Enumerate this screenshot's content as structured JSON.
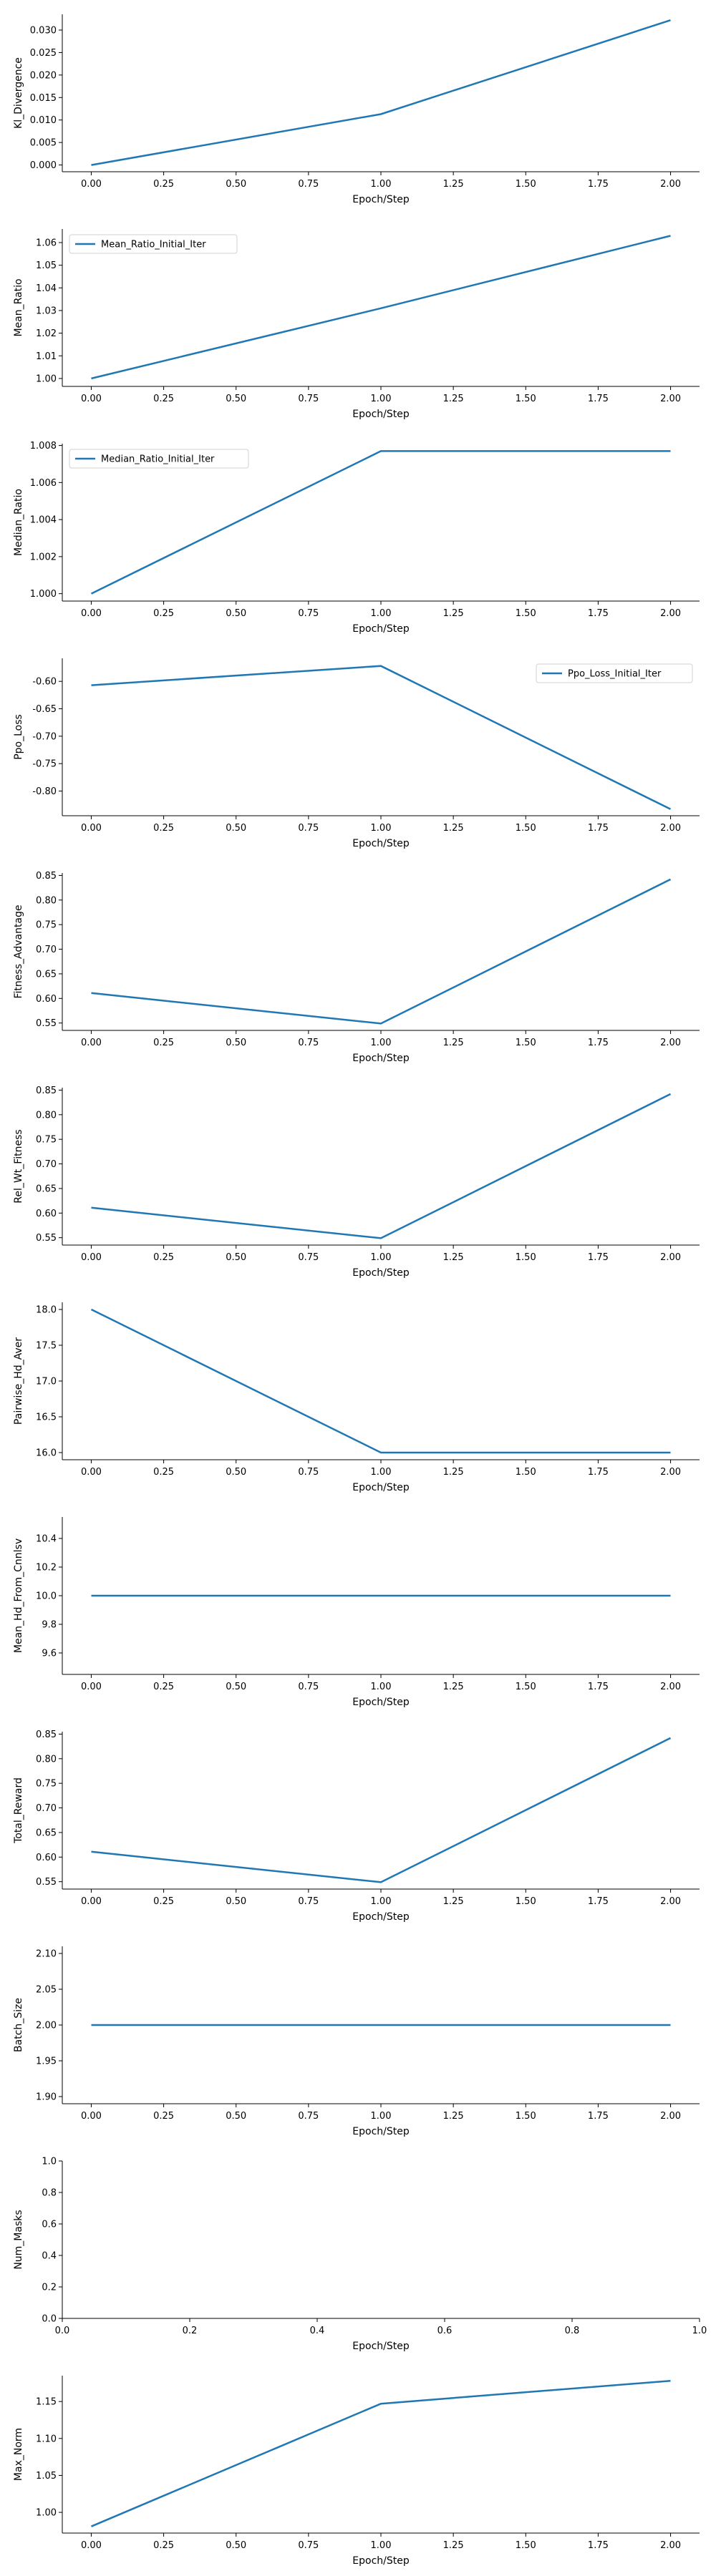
{
  "colors": {
    "series": "#1f77b4",
    "axis": "#000000",
    "background": "#ffffff"
  },
  "chart_data": [
    {
      "type": "line",
      "xlabel": "Epoch/Step",
      "ylabel": "Kl_Divergence",
      "xlim": [
        -0.1,
        2.1
      ],
      "ylim": [
        -0.0015,
        0.0335
      ],
      "xticks": [
        "0.00",
        "0.25",
        "0.50",
        "0.75",
        "1.00",
        "1.25",
        "1.50",
        "1.75",
        "2.00"
      ],
      "yticks": [
        "0.000",
        "0.005",
        "0.010",
        "0.015",
        "0.020",
        "0.025",
        "0.030"
      ],
      "legend": null,
      "series": [
        {
          "x": [
            0,
            1,
            2
          ],
          "y": [
            0.0,
            0.0113,
            0.0322
          ]
        }
      ]
    },
    {
      "type": "line",
      "xlabel": "Epoch/Step",
      "ylabel": "Mean_Ratio",
      "xlim": [
        -0.1,
        2.1
      ],
      "ylim": [
        0.9965,
        1.066
      ],
      "xticks": [
        "0.00",
        "0.25",
        "0.50",
        "0.75",
        "1.00",
        "1.25",
        "1.50",
        "1.75",
        "2.00"
      ],
      "yticks": [
        "1.00",
        "1.01",
        "1.02",
        "1.03",
        "1.04",
        "1.05",
        "1.06"
      ],
      "legend": "upper-left",
      "series": [
        {
          "name": "Mean_Ratio_Initial_Iter",
          "x": [
            0,
            1,
            2
          ],
          "y": [
            1.0,
            1.031,
            1.063
          ]
        }
      ]
    },
    {
      "type": "line",
      "xlabel": "Epoch/Step",
      "ylabel": "Median_Ratio",
      "xlim": [
        -0.1,
        2.1
      ],
      "ylim": [
        0.9996,
        1.0081
      ],
      "xticks": [
        "0.00",
        "0.25",
        "0.50",
        "0.75",
        "1.00",
        "1.25",
        "1.50",
        "1.75",
        "2.00"
      ],
      "yticks": [
        "1.000",
        "1.002",
        "1.004",
        "1.006",
        "1.008"
      ],
      "legend": "upper-left",
      "series": [
        {
          "name": "Median_Ratio_Initial_Iter",
          "x": [
            0,
            1,
            2
          ],
          "y": [
            1.0,
            1.0077,
            1.0077
          ]
        }
      ]
    },
    {
      "type": "line",
      "xlabel": "Epoch/Step",
      "ylabel": "Ppo_Loss",
      "xlim": [
        -0.1,
        2.1
      ],
      "ylim": [
        -0.845,
        -0.558
      ],
      "xticks": [
        "0.00",
        "0.25",
        "0.50",
        "0.75",
        "1.00",
        "1.25",
        "1.50",
        "1.75",
        "2.00"
      ],
      "yticks": [
        "-0.60",
        "-0.65",
        "-0.70",
        "-0.75",
        "-0.80"
      ],
      "legend": "upper-right",
      "series": [
        {
          "name": "Ppo_Loss_Initial_Iter",
          "x": [
            0,
            1,
            2
          ],
          "y": [
            -0.607,
            -0.572,
            -0.833
          ]
        }
      ]
    },
    {
      "type": "line",
      "xlabel": "Epoch/Step",
      "ylabel": "Fitness_Advantage",
      "xlim": [
        -0.1,
        2.1
      ],
      "ylim": [
        0.535,
        0.855
      ],
      "xticks": [
        "0.00",
        "0.25",
        "0.50",
        "0.75",
        "1.00",
        "1.25",
        "1.50",
        "1.75",
        "2.00"
      ],
      "yticks": [
        "0.55",
        "0.60",
        "0.65",
        "0.70",
        "0.75",
        "0.80",
        "0.85"
      ],
      "legend": null,
      "series": [
        {
          "x": [
            0,
            1,
            2
          ],
          "y": [
            0.611,
            0.549,
            0.842
          ]
        }
      ]
    },
    {
      "type": "line",
      "xlabel": "Epoch/Step",
      "ylabel": "Rel_Wt_Fitness",
      "xlim": [
        -0.1,
        2.1
      ],
      "ylim": [
        0.535,
        0.855
      ],
      "xticks": [
        "0.00",
        "0.25",
        "0.50",
        "0.75",
        "1.00",
        "1.25",
        "1.50",
        "1.75",
        "2.00"
      ],
      "yticks": [
        "0.55",
        "0.60",
        "0.65",
        "0.70",
        "0.75",
        "0.80",
        "0.85"
      ],
      "legend": null,
      "series": [
        {
          "x": [
            0,
            1,
            2
          ],
          "y": [
            0.611,
            0.549,
            0.842
          ]
        }
      ]
    },
    {
      "type": "line",
      "xlabel": "Epoch/Step",
      "ylabel": "Pairwise_Hd_Aver",
      "xlim": [
        -0.1,
        2.1
      ],
      "ylim": [
        15.9,
        18.1
      ],
      "xticks": [
        "0.00",
        "0.25",
        "0.50",
        "0.75",
        "1.00",
        "1.25",
        "1.50",
        "1.75",
        "2.00"
      ],
      "yticks": [
        "16.0",
        "16.5",
        "17.0",
        "17.5",
        "18.0"
      ],
      "legend": null,
      "series": [
        {
          "x": [
            0,
            1,
            2
          ],
          "y": [
            18.0,
            16.0,
            16.0
          ]
        }
      ]
    },
    {
      "type": "line",
      "xlabel": "Epoch/Step",
      "ylabel": "Mean_Hd_From_Cnnlsv",
      "xlim": [
        -0.1,
        2.1
      ],
      "ylim": [
        9.45,
        10.55
      ],
      "xticks": [
        "0.00",
        "0.25",
        "0.50",
        "0.75",
        "1.00",
        "1.25",
        "1.50",
        "1.75",
        "2.00"
      ],
      "yticks": [
        "9.6",
        "9.8",
        "10.0",
        "10.2",
        "10.4"
      ],
      "legend": null,
      "series": [
        {
          "x": [
            0,
            1,
            2
          ],
          "y": [
            10.0,
            10.0,
            10.0
          ]
        }
      ]
    },
    {
      "type": "line",
      "xlabel": "Epoch/Step",
      "ylabel": "Total_Reward",
      "xlim": [
        -0.1,
        2.1
      ],
      "ylim": [
        0.535,
        0.855
      ],
      "xticks": [
        "0.00",
        "0.25",
        "0.50",
        "0.75",
        "1.00",
        "1.25",
        "1.50",
        "1.75",
        "2.00"
      ],
      "yticks": [
        "0.55",
        "0.60",
        "0.65",
        "0.70",
        "0.75",
        "0.80",
        "0.85"
      ],
      "legend": null,
      "series": [
        {
          "x": [
            0,
            1,
            2
          ],
          "y": [
            0.611,
            0.549,
            0.842
          ]
        }
      ]
    },
    {
      "type": "line",
      "xlabel": "Epoch/Step",
      "ylabel": "Batch_Size",
      "xlim": [
        -0.1,
        2.1
      ],
      "ylim": [
        1.89,
        2.11
      ],
      "xticks": [
        "0.00",
        "0.25",
        "0.50",
        "0.75",
        "1.00",
        "1.25",
        "1.50",
        "1.75",
        "2.00"
      ],
      "yticks": [
        "1.90",
        "1.95",
        "2.00",
        "2.05",
        "2.10"
      ],
      "legend": null,
      "series": [
        {
          "x": [
            0,
            1,
            2
          ],
          "y": [
            2.0,
            2.0,
            2.0
          ]
        }
      ]
    },
    {
      "type": "line",
      "xlabel": "Epoch/Step",
      "ylabel": "Num_Masks",
      "xlim": [
        0,
        1
      ],
      "ylim": [
        0,
        1
      ],
      "xticks": [
        "0.0",
        "0.2",
        "0.4",
        "0.6",
        "0.8",
        "1.0"
      ],
      "yticks": [
        "0.0",
        "0.2",
        "0.4",
        "0.6",
        "0.8",
        "1.0"
      ],
      "legend": null,
      "series": []
    },
    {
      "type": "line",
      "xlabel": "Epoch/Step",
      "ylabel": "Max_Norm",
      "xlim": [
        -0.1,
        2.1
      ],
      "ylim": [
        0.972,
        1.185
      ],
      "xticks": [
        "0.00",
        "0.25",
        "0.50",
        "0.75",
        "1.00",
        "1.25",
        "1.50",
        "1.75",
        "2.00"
      ],
      "yticks": [
        "1.00",
        "1.05",
        "1.10",
        "1.15"
      ],
      "legend": null,
      "series": [
        {
          "x": [
            0,
            1,
            2
          ],
          "y": [
            0.981,
            1.147,
            1.178
          ]
        }
      ]
    }
  ]
}
